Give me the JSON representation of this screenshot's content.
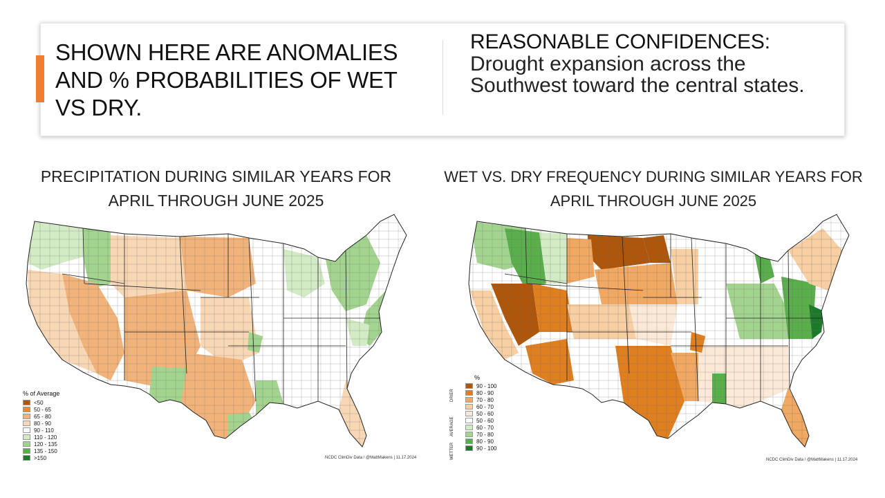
{
  "header": {
    "headline": "SHOWN HERE ARE ANOMALIES AND % PROBABILITIES OF WET VS DRY.",
    "confidence_title": "REASONABLE CONFIDENCES:",
    "confidence_body": "Drought expansion across the Southwest toward the central states."
  },
  "left_map": {
    "title": "PRECIPITATION DURING SIMILAR YEARS FOR APRIL THROUGH JUNE 2025",
    "legend_title": "% of Average",
    "legend": [
      {
        "label": "<50",
        "color": "#b0560b"
      },
      {
        "label": "50 - 65",
        "color": "#e88a2e"
      },
      {
        "label": "65 - 80",
        "color": "#f2b37a"
      },
      {
        "label": "80 - 90",
        "color": "#f8d7b4"
      },
      {
        "label": "90 - 110",
        "color": "#ffffff"
      },
      {
        "label": "110 - 120",
        "color": "#d3ebc4"
      },
      {
        "label": "120 - 135",
        "color": "#a3d48f"
      },
      {
        "label": "135 - 150",
        "color": "#5aae4c"
      },
      {
        "label": ">150",
        "color": "#1d7a2a"
      }
    ],
    "credit": "NCDC ClimDiv Data / @MattMakens | 11.17.2024"
  },
  "right_map": {
    "title": "WET VS. DRY FREQUENCY DURING SIMILAR YEARS FOR APRIL THROUGH JUNE 2025",
    "legend_title": "%",
    "side_labels": {
      "top": "DRIER",
      "middle": "AVERAGE",
      "bottom": "WETTER"
    },
    "legend": [
      {
        "label": "90 - 100",
        "color": "#b0560b"
      },
      {
        "label": "80 - 90",
        "color": "#e07f1f"
      },
      {
        "label": "70 - 80",
        "color": "#f0a862"
      },
      {
        "label": "60 - 70",
        "color": "#f7cfa3"
      },
      {
        "label": "50 - 60",
        "color": "#fbe8d6"
      },
      {
        "label": "50 - 60",
        "color": "#ffffff"
      },
      {
        "label": "60 - 70",
        "color": "#d3ebc4"
      },
      {
        "label": "70 - 80",
        "color": "#a3d48f"
      },
      {
        "label": "80 - 90",
        "color": "#5aae4c"
      },
      {
        "label": "90 - 100",
        "color": "#1d7a2a"
      }
    ],
    "credit": "NCDC ClimDiv Data / @MattMakens | 11.17.2024"
  }
}
